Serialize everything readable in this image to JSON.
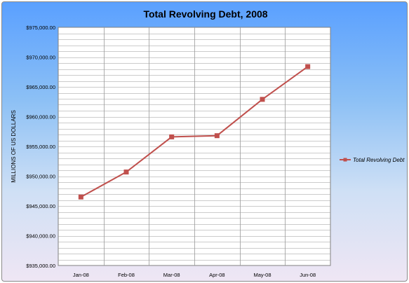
{
  "chart_data": {
    "type": "line",
    "title": "Total Revolving Debt, 2008",
    "xlabel": "",
    "ylabel": "MILLIONS OF US DOLLARS",
    "categories": [
      "Jan-08",
      "Feb-08",
      "Mar-08",
      "Apr-08",
      "May-08",
      "Jun-08"
    ],
    "series": [
      {
        "name": "Total Revolving Debt",
        "values": [
          946500,
          950700,
          956600,
          956800,
          962900,
          968400
        ],
        "color": "#c0504d"
      }
    ],
    "ylim": [
      935000,
      975000
    ],
    "yticks": [
      935000,
      940000,
      945000,
      950000,
      955000,
      960000,
      965000,
      970000,
      975000
    ],
    "ytick_labels": [
      "$935,000.00",
      "$940,000.00",
      "$945,000.00",
      "$950,000.00",
      "$955,000.00",
      "$960,000.00",
      "$965,000.00",
      "$970,000.00",
      "$975,000.00"
    ],
    "minor_grid_step": 1000,
    "grid": true,
    "legend_position": "right"
  }
}
